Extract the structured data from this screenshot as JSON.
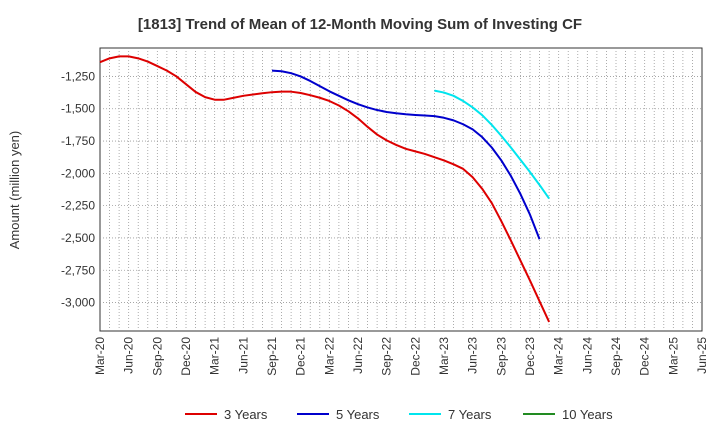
{
  "chart_data": {
    "type": "line",
    "title": "[1813]  Trend of Mean of 12-Month Moving Sum of Investing CF",
    "xlabel": "",
    "ylabel": "Amount (million yen)",
    "x_ticks": [
      "Mar-20",
      "Jun-20",
      "Sep-20",
      "Dec-20",
      "Mar-21",
      "Jun-21",
      "Sep-21",
      "Dec-21",
      "Mar-22",
      "Jun-22",
      "Sep-22",
      "Dec-22",
      "Mar-23",
      "Jun-23",
      "Sep-23",
      "Dec-23",
      "Mar-24",
      "Jun-24",
      "Sep-24",
      "Dec-24",
      "Mar-25",
      "Jun-25"
    ],
    "y_ticks": [
      -1250,
      -1500,
      -1750,
      -2000,
      -2250,
      -2500,
      -2750,
      -3000
    ],
    "y_tick_labels": [
      "-1,250",
      "-1,500",
      "-1,750",
      "-2,000",
      "-2,250",
      "-2,500",
      "-2,750",
      "-3,000"
    ],
    "ylim": [
      -3220,
      -1030
    ],
    "grid": true,
    "legend_position": "bottom",
    "series": [
      {
        "name": "3 Years",
        "color": "#dd0000",
        "start_index": 0,
        "values": [
          -1140,
          -1110,
          -1095,
          -1095,
          -1110,
          -1135,
          -1170,
          -1205,
          -1250,
          -1310,
          -1370,
          -1410,
          -1430,
          -1430,
          -1415,
          -1400,
          -1390,
          -1380,
          -1372,
          -1368,
          -1368,
          -1378,
          -1395,
          -1415,
          -1440,
          -1475,
          -1520,
          -1575,
          -1640,
          -1700,
          -1745,
          -1780,
          -1810,
          -1830,
          -1850,
          -1875,
          -1900,
          -1930,
          -1965,
          -2030,
          -2120,
          -2230,
          -2370,
          -2520,
          -2675,
          -2830,
          -2990,
          -3150
        ]
      },
      {
        "name": "5 Years",
        "color": "#0000cc",
        "start_index": 18,
        "values": [
          -1205,
          -1210,
          -1225,
          -1250,
          -1285,
          -1325,
          -1365,
          -1400,
          -1435,
          -1465,
          -1490,
          -1510,
          -1525,
          -1535,
          -1543,
          -1548,
          -1552,
          -1557,
          -1570,
          -1590,
          -1620,
          -1660,
          -1720,
          -1800,
          -1900,
          -2020,
          -2160,
          -2320,
          -2510
        ]
      },
      {
        "name": "7 Years",
        "color": "#00e5ee",
        "start_index": 35,
        "values": [
          -1360,
          -1375,
          -1400,
          -1440,
          -1490,
          -1550,
          -1625,
          -1710,
          -1800,
          -1895,
          -1990,
          -2090,
          -2195
        ]
      },
      {
        "name": "10 Years",
        "color": "#228B22",
        "start_index": 0,
        "values": []
      }
    ]
  }
}
